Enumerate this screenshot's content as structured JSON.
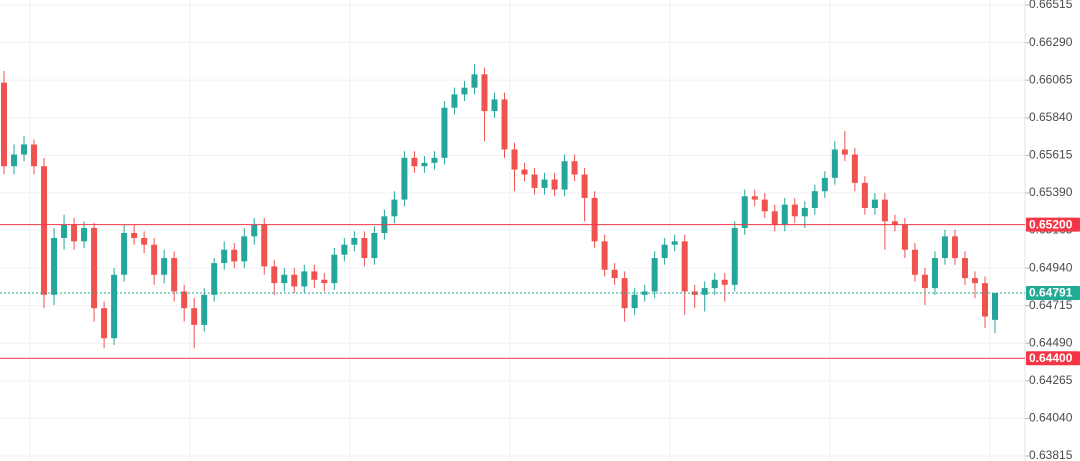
{
  "chart_data": {
    "type": "candlestick",
    "up_color": "#26a69a",
    "down_color": "#ef5350",
    "ylim": [
      0.63785,
      0.66545
    ],
    "yticks": [
      0.66515,
      {
        "value": 0.6629,
        "label": "0.66290"
      },
      0.66065,
      {
        "value": 0.6584,
        "label": "0.65840"
      },
      0.65615,
      {
        "value": 0.6539,
        "label": "0.65390"
      },
      0.65165,
      {
        "value": 0.6494,
        "label": "0.64940"
      },
      0.64715,
      {
        "value": 0.6449,
        "label": "0.64490"
      },
      0.64265,
      {
        "value": 0.6404,
        "label": "0.64040"
      },
      0.63815
    ],
    "grid": true,
    "levels": [
      {
        "value": 0.652,
        "label": "0.65200",
        "color": "#f23645"
      },
      {
        "value": 0.644,
        "label": "0.64400",
        "color": "#f23645"
      }
    ],
    "current_price": {
      "value": 0.64791,
      "label": "0.64791",
      "color": "#22ab94"
    },
    "open": [
      0.6605,
      0.6555,
      0.6562,
      0.6568,
      0.6555,
      0.6478,
      0.6512,
      0.652,
      0.651,
      0.6518,
      0.647,
      0.6452,
      0.649,
      0.6515,
      0.6512,
      0.6508,
      0.649,
      0.65,
      0.648,
      0.647,
      0.646,
      0.6478,
      0.6497,
      0.6505,
      0.6498,
      0.6513,
      0.652,
      0.6495,
      0.6485,
      0.649,
      0.6483,
      0.6492,
      0.6487,
      0.6485,
      0.6502,
      0.6508,
      0.6512,
      0.65,
      0.6515,
      0.6525,
      0.6535,
      0.656,
      0.6555,
      0.6557,
      0.656,
      0.659,
      0.6598,
      0.6602,
      0.661,
      0.6588,
      0.6595,
      0.6565,
      0.6553,
      0.655,
      0.6542,
      0.6547,
      0.6541,
      0.6558,
      0.655,
      0.6536,
      0.651,
      0.6493,
      0.6488,
      0.647,
      0.6478,
      0.648,
      0.65,
      0.6508,
      0.651,
      0.648,
      0.6478,
      0.6482,
      0.6487,
      0.6484,
      0.6518,
      0.6537,
      0.6535,
      0.6528,
      0.652,
      0.6532,
      0.6525,
      0.653,
      0.654,
      0.6548,
      0.6565,
      0.6562,
      0.6545,
      0.653,
      0.6535,
      0.6522,
      0.652,
      0.6505,
      0.649,
      0.6482,
      0.65,
      0.6513,
      0.65,
      0.6488,
      0.6485,
      0.6463
    ],
    "high": [
      0.6612,
      0.6568,
      0.6573,
      0.6571,
      0.656,
      0.6518,
      0.6526,
      0.6524,
      0.6522,
      0.6521,
      0.6474,
      0.6494,
      0.652,
      0.652,
      0.6516,
      0.6512,
      0.6505,
      0.6504,
      0.6484,
      0.6476,
      0.6482,
      0.65,
      0.651,
      0.6509,
      0.6518,
      0.6524,
      0.6524,
      0.6499,
      0.6494,
      0.6494,
      0.6496,
      0.6496,
      0.6491,
      0.6506,
      0.6512,
      0.6516,
      0.6516,
      0.6519,
      0.6529,
      0.654,
      0.6564,
      0.6564,
      0.6561,
      0.6564,
      0.6594,
      0.6602,
      0.6606,
      0.6616,
      0.6614,
      0.6599,
      0.6599,
      0.6569,
      0.6557,
      0.6554,
      0.6551,
      0.6551,
      0.6562,
      0.6562,
      0.6554,
      0.654,
      0.6514,
      0.6497,
      0.6492,
      0.6482,
      0.6484,
      0.6504,
      0.6512,
      0.6514,
      0.6514,
      0.6484,
      0.6486,
      0.6491,
      0.6491,
      0.6522,
      0.6541,
      0.6541,
      0.6539,
      0.6532,
      0.6536,
      0.6536,
      0.6534,
      0.6544,
      0.6552,
      0.657,
      0.6576,
      0.6566,
      0.6549,
      0.6539,
      0.6539,
      0.6526,
      0.6524,
      0.6509,
      0.6494,
      0.6504,
      0.6517,
      0.6517,
      0.6504,
      0.6492,
      0.6489,
      0.64791
    ],
    "low": [
      0.655,
      0.655,
      0.6558,
      0.655,
      0.647,
      0.6472,
      0.6505,
      0.6505,
      0.6506,
      0.6462,
      0.6446,
      0.6448,
      0.6486,
      0.6508,
      0.6503,
      0.6484,
      0.6485,
      0.6474,
      0.6462,
      0.6446,
      0.6456,
      0.6474,
      0.6493,
      0.6494,
      0.6494,
      0.6508,
      0.649,
      0.6478,
      0.648,
      0.6479,
      0.6479,
      0.6482,
      0.648,
      0.6481,
      0.6498,
      0.6504,
      0.6495,
      0.6496,
      0.6511,
      0.6521,
      0.6531,
      0.6551,
      0.6551,
      0.6553,
      0.6556,
      0.6586,
      0.6594,
      0.6598,
      0.657,
      0.6584,
      0.656,
      0.654,
      0.6546,
      0.6538,
      0.6538,
      0.6537,
      0.6537,
      0.6546,
      0.6522,
      0.6506,
      0.6489,
      0.6484,
      0.6462,
      0.6466,
      0.6474,
      0.6476,
      0.6496,
      0.6504,
      0.6466,
      0.647,
      0.6468,
      0.6478,
      0.6474,
      0.648,
      0.6514,
      0.6531,
      0.6524,
      0.6516,
      0.6516,
      0.6521,
      0.6518,
      0.6526,
      0.6536,
      0.6544,
      0.6558,
      0.654,
      0.6526,
      0.6526,
      0.6505,
      0.6516,
      0.65,
      0.6486,
      0.6472,
      0.6478,
      0.6496,
      0.6496,
      0.6484,
      0.6476,
      0.6458,
      0.6455
    ],
    "close": [
      0.6555,
      0.6562,
      0.6568,
      0.6555,
      0.6478,
      0.6512,
      0.652,
      0.651,
      0.6518,
      0.647,
      0.6452,
      0.649,
      0.6515,
      0.6512,
      0.6508,
      0.649,
      0.65,
      0.648,
      0.647,
      0.646,
      0.6478,
      0.6497,
      0.6505,
      0.6498,
      0.6513,
      0.652,
      0.6495,
      0.6485,
      0.649,
      0.6483,
      0.6492,
      0.6487,
      0.6485,
      0.6502,
      0.6508,
      0.6512,
      0.65,
      0.6515,
      0.6525,
      0.6535,
      0.656,
      0.6555,
      0.6557,
      0.656,
      0.659,
      0.6598,
      0.6602,
      0.661,
      0.6588,
      0.6595,
      0.6565,
      0.6553,
      0.655,
      0.6542,
      0.6547,
      0.6541,
      0.6558,
      0.655,
      0.6536,
      0.651,
      0.6493,
      0.6488,
      0.647,
      0.6478,
      0.648,
      0.65,
      0.6508,
      0.651,
      0.648,
      0.6478,
      0.6482,
      0.6487,
      0.6484,
      0.6518,
      0.6537,
      0.6535,
      0.6528,
      0.652,
      0.6532,
      0.6525,
      0.653,
      0.654,
      0.6548,
      0.6565,
      0.6562,
      0.6545,
      0.653,
      0.6535,
      0.6522,
      0.652,
      0.6505,
      0.649,
      0.6482,
      0.65,
      0.6513,
      0.65,
      0.6488,
      0.6485,
      0.6465,
      0.64791
    ]
  }
}
